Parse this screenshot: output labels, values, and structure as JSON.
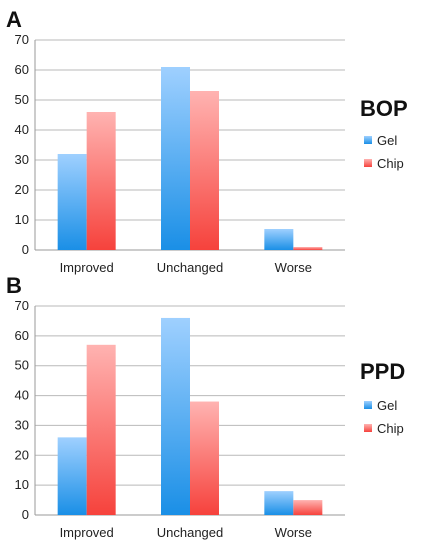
{
  "colors": {
    "gel_light": "#9fd0ff",
    "gel_dark": "#1a8fe6",
    "chip_light": "#ffb3b1",
    "chip_dark": "#f6423c",
    "grid": "#b9b9b9"
  },
  "chart_data": [
    {
      "panel": "A",
      "type": "bar",
      "title": "BOP",
      "categories": [
        "Improved",
        "Unchanged",
        "Worse"
      ],
      "ylim": [
        0,
        70
      ],
      "yticks": [
        0,
        10,
        20,
        30,
        40,
        50,
        60,
        70
      ],
      "grid": true,
      "legend": "right",
      "series": [
        {
          "name": "Gel",
          "values": [
            32,
            61,
            7
          ]
        },
        {
          "name": "Chip",
          "values": [
            46,
            53,
            1
          ]
        }
      ]
    },
    {
      "panel": "B",
      "type": "bar",
      "title": "PPD",
      "categories": [
        "Improved",
        "Unchanged",
        "Worse"
      ],
      "ylim": [
        0,
        70
      ],
      "yticks": [
        0,
        10,
        20,
        30,
        40,
        50,
        60,
        70
      ],
      "grid": true,
      "legend": "right",
      "series": [
        {
          "name": "Gel",
          "values": [
            26,
            66,
            8
          ]
        },
        {
          "name": "Chip",
          "values": [
            57,
            38,
            5
          ]
        }
      ]
    }
  ]
}
